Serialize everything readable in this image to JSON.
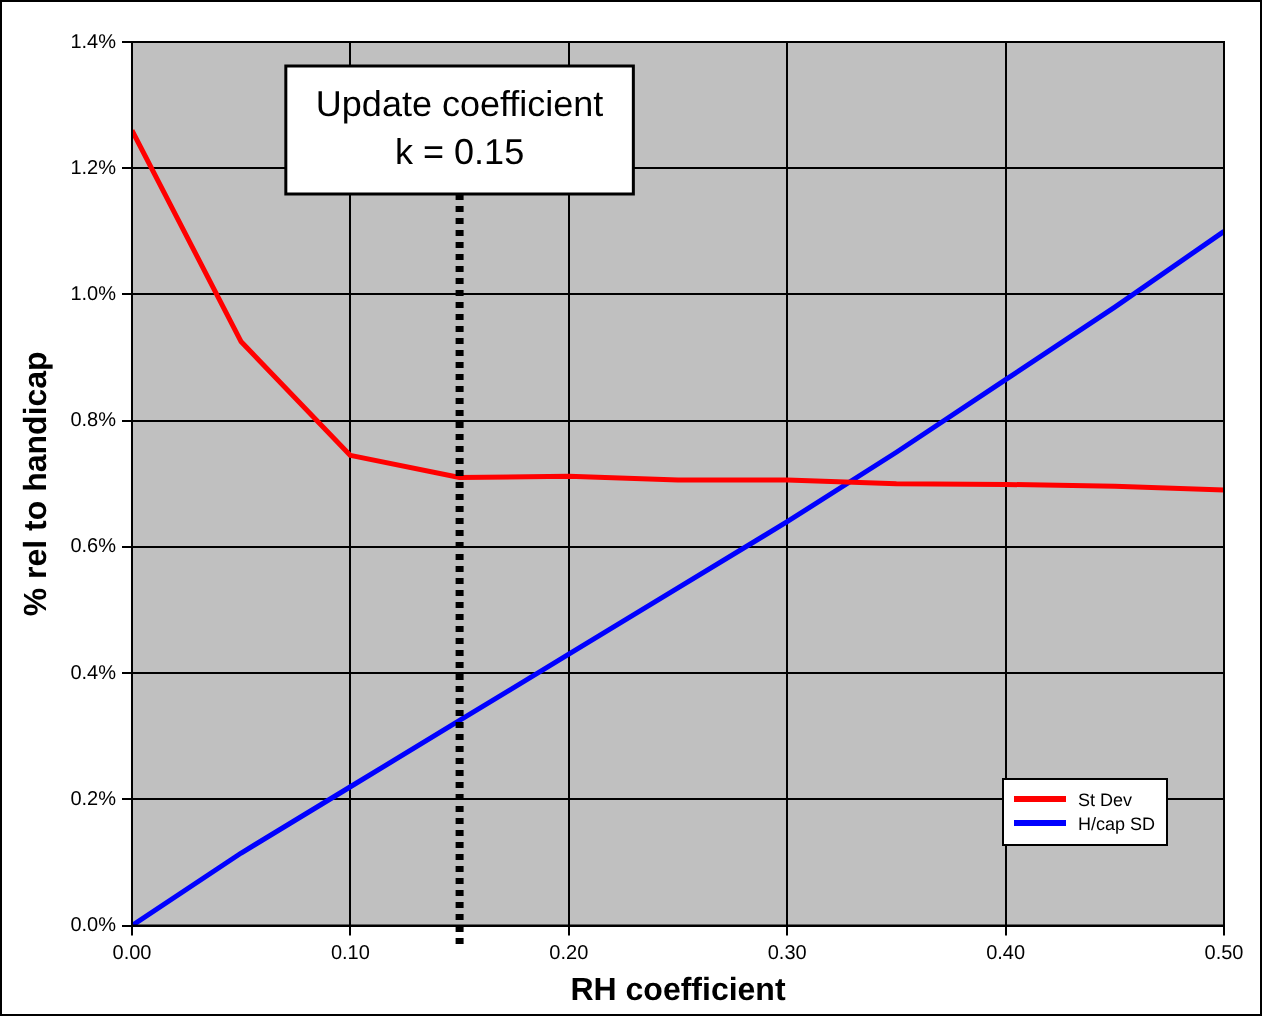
{
  "chart_data": {
    "type": "line",
    "xlabel": "RH coefficient",
    "ylabel": "% rel to handicap",
    "x": [
      0,
      0.05,
      0.1,
      0.15,
      0.2,
      0.25,
      0.3,
      0.35,
      0.4,
      0.45,
      0.5
    ],
    "series": [
      {
        "name": "St Dev",
        "color": "#ff0000",
        "values": [
          1.26,
          0.925,
          0.745,
          0.71,
          0.712,
          0.706,
          0.706,
          0.7,
          0.699,
          0.696,
          0.69
        ]
      },
      {
        "name": "H/cap SD",
        "color": "#0000ff",
        "values": [
          0,
          0.115,
          0.22,
          0.325,
          0.43,
          0.535,
          0.64,
          0.75,
          0.865,
          0.98,
          1.1
        ]
      }
    ],
    "xlim": [
      0,
      0.5
    ],
    "xticks": [
      {
        "value": 0,
        "label": "0.00"
      },
      {
        "value": 0.1,
        "label": "0.10"
      },
      {
        "value": 0.2,
        "label": "0.20"
      },
      {
        "value": 0.3,
        "label": "0.30"
      },
      {
        "value": 0.4,
        "label": "0.40"
      },
      {
        "value": 0.5,
        "label": "0.50"
      }
    ],
    "ylim": [
      0,
      1.4
    ],
    "yticks": [
      {
        "value": 0,
        "label": "0.0%"
      },
      {
        "value": 0.2,
        "label": "0.2%"
      },
      {
        "value": 0.4,
        "label": "0.4%"
      },
      {
        "value": 0.6,
        "label": "0.6%"
      },
      {
        "value": 0.8,
        "label": "0.8%"
      },
      {
        "value": 1.0,
        "label": "1.0%"
      },
      {
        "value": 1.2,
        "label": "1.2%"
      },
      {
        "value": 1.4,
        "label": "1.4%"
      }
    ],
    "ref_lines": [
      {
        "axis": "x",
        "value": 0.15,
        "label": "Update coefficient\nk = 0.15",
        "color": "#000000",
        "line_style": "dotted"
      }
    ],
    "grid": true,
    "legend": "bottom right",
    "marker": "none",
    "line_style": "solid"
  }
}
